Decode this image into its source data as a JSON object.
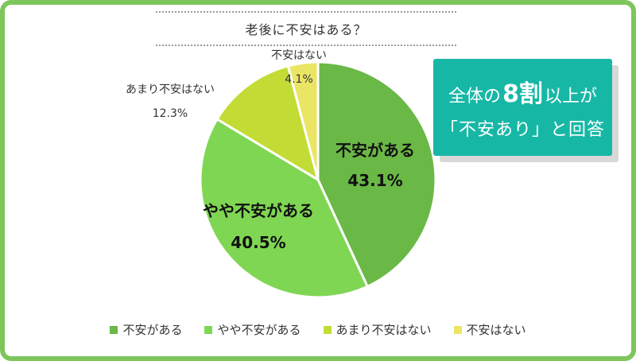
{
  "chart_data": {
    "type": "pie",
    "title": "老後に不安はある？",
    "slices": [
      {
        "label": "不安がある",
        "value": 43.1,
        "value_text": "43.1%",
        "color": "#6ab846"
      },
      {
        "label": "やや不安がある",
        "value": 40.5,
        "value_text": "40.5%",
        "color": "#7fd653"
      },
      {
        "label": "あまり不安はない",
        "value": 12.3,
        "value_text": "12.3%",
        "color": "#c3dc35"
      },
      {
        "label": "不安はない",
        "value": 4.1,
        "value_text": "4.1%",
        "color": "#ebe565"
      }
    ],
    "start_angle_deg": 0,
    "direction": "clockwise",
    "legend_position": "bottom"
  },
  "callout": {
    "line1_prefix": "全体の",
    "line1_emphasis": "8割",
    "line1_suffix": "以上が",
    "line2": "「不安あり」と回答",
    "color": "#17b7a6"
  }
}
